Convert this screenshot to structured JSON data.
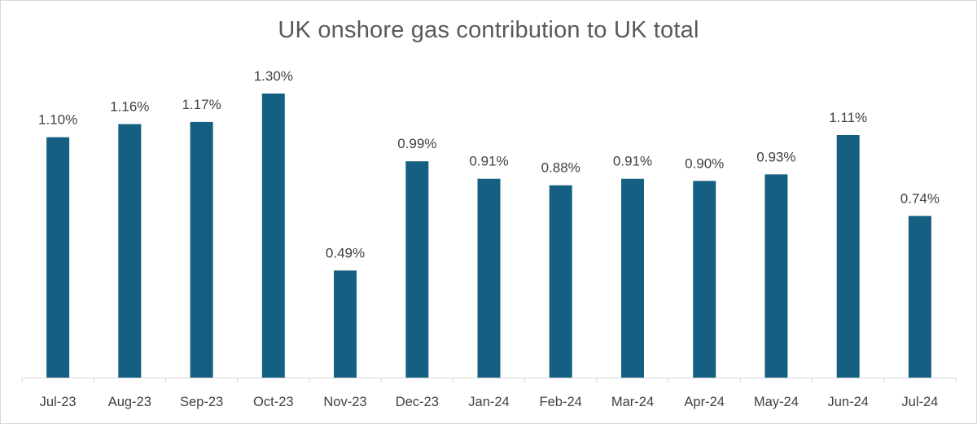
{
  "chart_data": {
    "type": "bar",
    "title": "UK onshore gas contribution to UK total",
    "xlabel": "",
    "ylabel": "",
    "categories": [
      "Jul-23",
      "Aug-23",
      "Sep-23",
      "Oct-23",
      "Nov-23",
      "Dec-23",
      "Jan-24",
      "Feb-24",
      "Mar-24",
      "Apr-24",
      "May-24",
      "Jun-24",
      "Jul-24"
    ],
    "values": [
      1.1,
      1.16,
      1.17,
      1.3,
      0.49,
      0.99,
      0.91,
      0.88,
      0.91,
      0.9,
      0.93,
      1.11,
      0.74
    ],
    "data_labels": [
      "1.10%",
      "1.16%",
      "1.17%",
      "1.30%",
      "0.49%",
      "0.99%",
      "0.91%",
      "0.88%",
      "0.91%",
      "0.90%",
      "0.93%",
      "1.11%",
      "0.74%"
    ],
    "ylim": [
      0,
      1.4
    ],
    "grid": false,
    "legend": "none",
    "colors": {
      "bar": "#156082",
      "axis": "#d9d9d9",
      "text": "#404040",
      "title": "#595959"
    }
  }
}
